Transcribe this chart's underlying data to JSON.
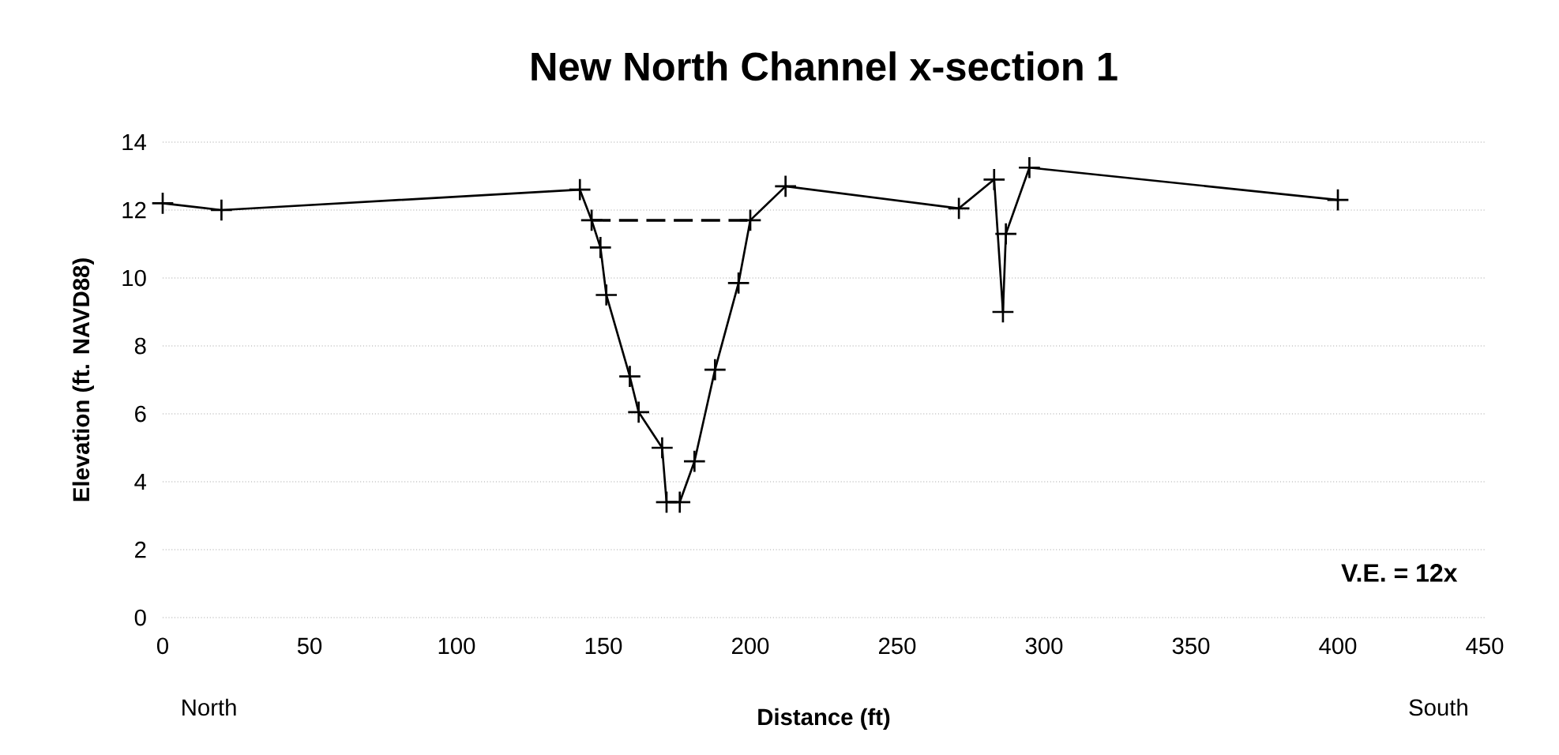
{
  "chart_data": {
    "type": "line",
    "title": "New North Channel x-section 1",
    "xlabel": "Distance (ft)",
    "ylabel": "Elevation (ft. NAVD88)",
    "xlim": [
      0,
      450
    ],
    "xticks": [
      0,
      50,
      100,
      150,
      200,
      250,
      300,
      350,
      400,
      450
    ],
    "ylim": [
      0,
      14
    ],
    "yticks": [
      0,
      2,
      4,
      6,
      8,
      10,
      12,
      14
    ],
    "grid": "y",
    "series": [
      {
        "color": "#000000",
        "marker": "cross",
        "line_style": "solid",
        "x": [
          0,
          20,
          142,
          146,
          149,
          151,
          159,
          162,
          170,
          171.5,
          176,
          181,
          188,
          196,
          200,
          212,
          271,
          283,
          286,
          287,
          295,
          400
        ],
        "values": [
          12.2,
          12.0,
          12.6,
          11.7,
          10.9,
          9.5,
          7.1,
          6.05,
          5.0,
          3.4,
          3.4,
          4.6,
          7.3,
          9.85,
          11.7,
          12.7,
          12.05,
          12.9,
          9.0,
          11.3,
          13.25,
          12.3
        ]
      },
      {
        "color": "#000000",
        "marker": "none",
        "line_style": "dashed",
        "x": [
          146,
          200
        ],
        "values": [
          11.7,
          11.7
        ]
      }
    ],
    "annotations": [
      "V.E. = 12x",
      "North",
      "South"
    ]
  }
}
